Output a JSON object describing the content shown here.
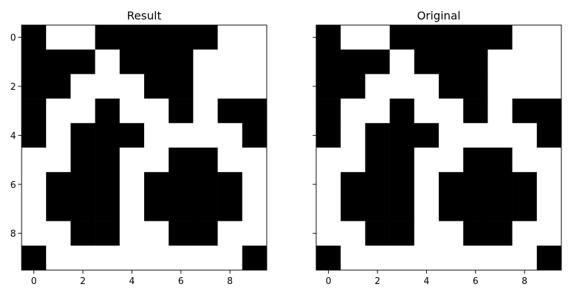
{
  "chart_data": [
    {
      "type": "heatmap",
      "title": "Result",
      "colormap": "gray (0 = black, 1 = white)",
      "xlim": [
        -0.5,
        9.5
      ],
      "ylim": [
        9.5,
        -0.5
      ],
      "xticks": [
        "0",
        "2",
        "4",
        "6",
        "8"
      ],
      "yticks": [
        "0",
        "2",
        "4",
        "6",
        "8"
      ],
      "grid": false,
      "values": [
        [
          0,
          1,
          1,
          0,
          0,
          0,
          0,
          0,
          1,
          1
        ],
        [
          0,
          0,
          0,
          1,
          0,
          0,
          0,
          1,
          1,
          1
        ],
        [
          0,
          0,
          1,
          1,
          1,
          0,
          0,
          1,
          1,
          1
        ],
        [
          0,
          1,
          1,
          0,
          1,
          1,
          0,
          1,
          0,
          0
        ],
        [
          0,
          1,
          0,
          0,
          0,
          1,
          1,
          1,
          1,
          0
        ],
        [
          1,
          1,
          0,
          0,
          1,
          1,
          0,
          0,
          1,
          1
        ],
        [
          1,
          0,
          0,
          0,
          1,
          0,
          0,
          0,
          0,
          1
        ],
        [
          1,
          0,
          0,
          0,
          1,
          0,
          0,
          0,
          0,
          1
        ],
        [
          1,
          1,
          0,
          0,
          1,
          1,
          0,
          0,
          1,
          1
        ],
        [
          0,
          1,
          1,
          1,
          1,
          1,
          1,
          1,
          1,
          0
        ]
      ]
    },
    {
      "type": "heatmap",
      "title": "Original",
      "colormap": "gray (0 = black, 1 = white)",
      "xlim": [
        -0.5,
        9.5
      ],
      "ylim": [
        9.5,
        -0.5
      ],
      "xticks": [
        "0",
        "2",
        "4",
        "6",
        "8"
      ],
      "yticks": [],
      "grid": false,
      "values": [
        [
          0,
          1,
          1,
          0,
          0,
          0,
          0,
          0,
          1,
          1
        ],
        [
          0,
          0,
          0,
          1,
          0,
          0,
          0,
          1,
          1,
          1
        ],
        [
          0,
          0,
          1,
          1,
          1,
          0,
          0,
          1,
          1,
          1
        ],
        [
          0,
          1,
          1,
          0,
          1,
          1,
          0,
          1,
          0,
          0
        ],
        [
          0,
          1,
          0,
          0,
          0,
          1,
          1,
          1,
          1,
          0
        ],
        [
          1,
          1,
          0,
          0,
          1,
          1,
          0,
          0,
          1,
          1
        ],
        [
          1,
          0,
          0,
          0,
          1,
          0,
          0,
          0,
          0,
          1
        ],
        [
          1,
          0,
          0,
          0,
          1,
          0,
          0,
          0,
          0,
          1
        ],
        [
          1,
          1,
          0,
          0,
          1,
          1,
          0,
          0,
          1,
          1
        ],
        [
          0,
          1,
          1,
          1,
          1,
          1,
          1,
          1,
          1,
          0
        ]
      ]
    }
  ]
}
